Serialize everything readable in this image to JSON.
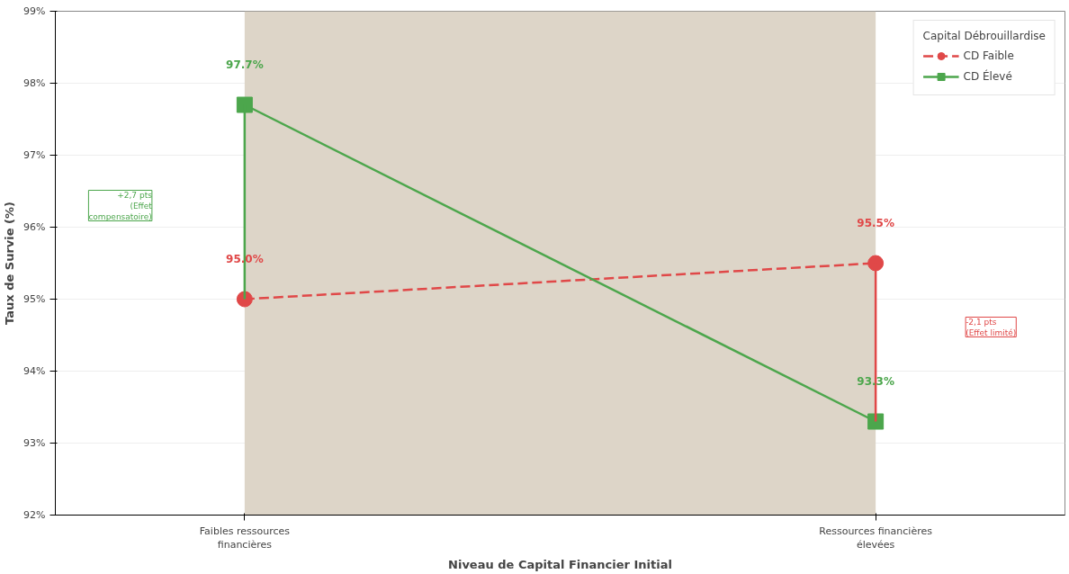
{
  "chart_data": {
    "type": "line",
    "xlabel": "Niveau de Capital Financier Initial",
    "ylabel": "Taux de Survie (%)",
    "legend_title": "Capital Débrouillardise",
    "categories": [
      "Faibles ressources\nfinancières",
      "Ressources financières\nélevées"
    ],
    "series": [
      {
        "name": "CD Faible",
        "color": "#e04848",
        "values": [
          95.0,
          95.5
        ],
        "errors": [
          null,
          [
            93.3,
            95.5
          ]
        ],
        "value_labels": [
          "95.0%",
          "95.5%"
        ],
        "marker": "circle",
        "line_style": "dashed"
      },
      {
        "name": "CD Élevé",
        "color": "#4ca64c",
        "values": [
          97.7,
          93.3
        ],
        "errors": [
          [
            95.0,
            97.7
          ],
          null
        ],
        "value_labels": [
          "97.7%",
          "93.3%"
        ],
        "marker": "square",
        "line_style": "solid"
      }
    ],
    "ylim": [
      92,
      99
    ],
    "yticks": [
      {
        "value": 92,
        "label": "92%"
      },
      {
        "value": 93,
        "label": "93%"
      },
      {
        "value": 94,
        "label": "94%"
      },
      {
        "value": 95,
        "label": "95%"
      },
      {
        "value": 96,
        "label": "96%"
      },
      {
        "value": 97,
        "label": "97%"
      },
      {
        "value": 98,
        "label": "98%"
      },
      {
        "value": 99,
        "label": "99%"
      }
    ],
    "bands": [
      {
        "axis": "x",
        "from": "Faibles ressources\nfinancières",
        "to": "Ressources financières\nélevées",
        "color": "#ddd5c8"
      }
    ],
    "annotations": [
      "+2,7 pts\n(Effet\ncompensatoire)",
      "-2,1 pts\n(Effet limité)"
    ],
    "grid": "y",
    "legend": "top right"
  }
}
